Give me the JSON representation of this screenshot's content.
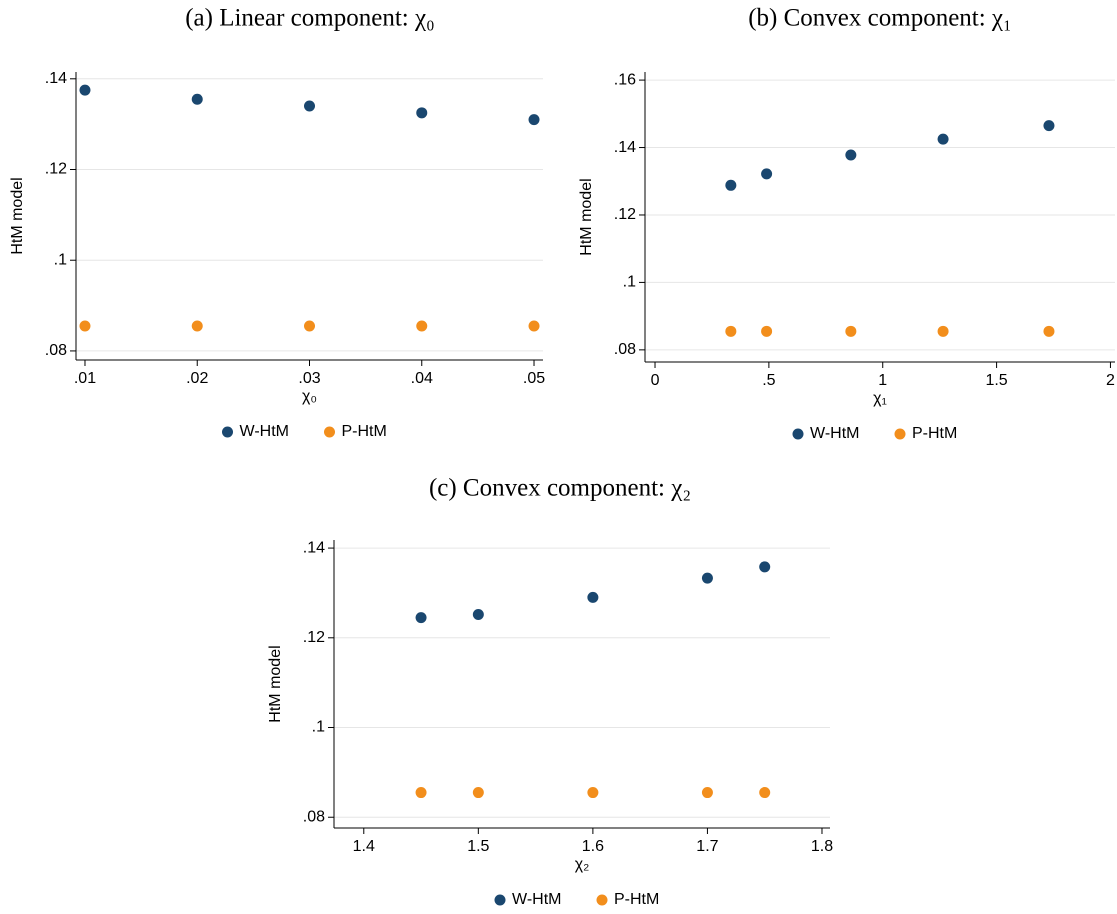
{
  "chart_data": [
    {
      "type": "scatter",
      "title": "(a) Linear component: χ₀",
      "x_label": "χ₀",
      "y_label": "HtM model",
      "x": [
        0.01,
        0.02,
        0.03,
        0.04,
        0.05
      ],
      "series": [
        {
          "name": "W-HtM",
          "color": "#1a476f",
          "values": [
            0.1375,
            0.1355,
            0.134,
            0.1325,
            0.131
          ]
        },
        {
          "name": "P-HtM",
          "color": "#f28e1c",
          "values": [
            0.0855,
            0.0855,
            0.0855,
            0.0855,
            0.0855
          ]
        }
      ],
      "xlim": [
        0.0092,
        0.0508
      ],
      "xticks": [
        {
          "value": 0.01,
          "label": ".01"
        },
        {
          "value": 0.02,
          "label": ".02"
        },
        {
          "value": 0.03,
          "label": ".03"
        },
        {
          "value": 0.04,
          "label": ".04"
        },
        {
          "value": 0.05,
          "label": ".05"
        }
      ],
      "ylim": [
        0.078,
        0.1415
      ],
      "yticks": [
        {
          "value": 0.08,
          "label": ".08"
        },
        {
          "value": 0.1,
          "label": ".1"
        },
        {
          "value": 0.12,
          "label": ".12"
        },
        {
          "value": 0.14,
          "label": ".14"
        }
      ],
      "grid": true,
      "legend": "bottom"
    },
    {
      "type": "scatter",
      "title": "(b) Convex component: χ₁",
      "x_label": "χ₁",
      "y_label": "HtM model",
      "x": [
        0.333,
        0.49,
        0.86,
        1.265,
        1.73
      ],
      "series": [
        {
          "name": "W-HtM",
          "color": "#1a476f",
          "values": [
            0.1288,
            0.1322,
            0.1378,
            0.1425,
            0.1465
          ]
        },
        {
          "name": "P-HtM",
          "color": "#f28e1c",
          "values": [
            0.0855,
            0.0855,
            0.0855,
            0.0855,
            0.0855
          ]
        }
      ],
      "xlim": [
        -0.044,
        2.02
      ],
      "xticks": [
        0,
        {
          "value": 0.5,
          "label": ".5"
        },
        1,
        1.5,
        2
      ],
      "ylim": [
        0.0764,
        0.1624
      ],
      "yticks": [
        {
          "value": 0.08,
          "label": ".08"
        },
        {
          "value": 0.1,
          "label": ".1"
        },
        {
          "value": 0.12,
          "label": ".12"
        },
        {
          "value": 0.14,
          "label": ".14"
        },
        {
          "value": 0.16,
          "label": ".16"
        }
      ],
      "grid": true,
      "legend": "bottom"
    },
    {
      "type": "scatter",
      "title": "(c) Convex component: χ₂",
      "x_label": "χ₂",
      "y_label": "HtM model",
      "x": [
        1.45,
        1.5,
        1.6,
        1.7,
        1.75
      ],
      "series": [
        {
          "name": "W-HtM",
          "color": "#1a476f",
          "values": [
            0.1245,
            0.1252,
            0.129,
            0.1333,
            0.1358
          ]
        },
        {
          "name": "P-HtM",
          "color": "#f28e1c",
          "values": [
            0.0855,
            0.0855,
            0.0855,
            0.0855,
            0.0855
          ]
        }
      ],
      "xlim": [
        1.374,
        1.807
      ],
      "xticks": [
        1.4,
        1.5,
        1.6,
        1.7,
        1.8
      ],
      "ylim": [
        0.0776,
        0.1418
      ],
      "yticks": [
        {
          "value": 0.08,
          "label": ".08"
        },
        {
          "value": 0.1,
          "label": ".1"
        },
        {
          "value": 0.12,
          "label": ".12"
        },
        {
          "value": 0.14,
          "label": ".14"
        }
      ],
      "grid": true,
      "legend": "bottom"
    }
  ]
}
